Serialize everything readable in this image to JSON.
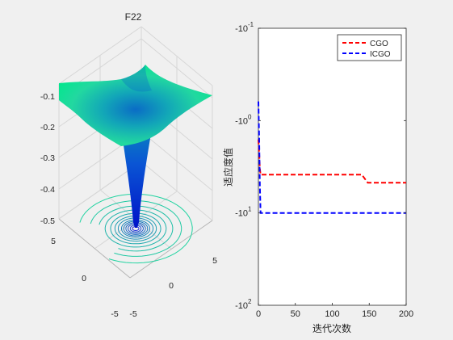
{
  "chart_data": [
    {
      "type": "surface",
      "title": "F22",
      "z_ticks": [
        "-0.1",
        "-0.2",
        "-0.3",
        "-0.4",
        "-0.5"
      ],
      "x_ticks": [
        "-5",
        "0",
        "5"
      ],
      "y_ticks": [
        "-5",
        "0",
        "5"
      ],
      "zlim": [
        -0.5,
        -0.06
      ],
      "xlim": [
        -5,
        5
      ],
      "ylim": [
        -5,
        5
      ],
      "surface_colormap": [
        "#00e88c",
        "#0000c8"
      ],
      "contour_colors": [
        "#1fd3a0",
        "#1c2ad8"
      ],
      "grid": true
    },
    {
      "type": "line",
      "title": "",
      "xlabel": "迭代次数",
      "ylabel": "适应度值",
      "x_ticks": [
        "0",
        "50",
        "100",
        "150",
        "200"
      ],
      "y_tick_base": [
        "-10",
        "-10",
        "-10",
        "-10"
      ],
      "y_tick_exp": [
        "-1",
        "0",
        "1",
        "2"
      ],
      "xlim": [
        0,
        200
      ],
      "yscale": "symlog-negative",
      "ylim": [
        -100,
        -0.1
      ],
      "legend_position": "top-right",
      "series": [
        {
          "name": "CGO",
          "color": "#ff0000",
          "style": "dashed",
          "x": [
            0,
            1,
            2,
            3,
            140,
            148,
            200
          ],
          "y": [
            -1.6,
            -2.2,
            -3.3,
            -3.85,
            -3.85,
            -4.7,
            -4.7
          ]
        },
        {
          "name": "ICGO",
          "color": "#0000ff",
          "style": "dashed",
          "x": [
            0,
            1,
            2,
            3,
            200
          ],
          "y": [
            -0.62,
            -1.5,
            -5.0,
            -10.0,
            -10.0
          ]
        }
      ]
    }
  ]
}
